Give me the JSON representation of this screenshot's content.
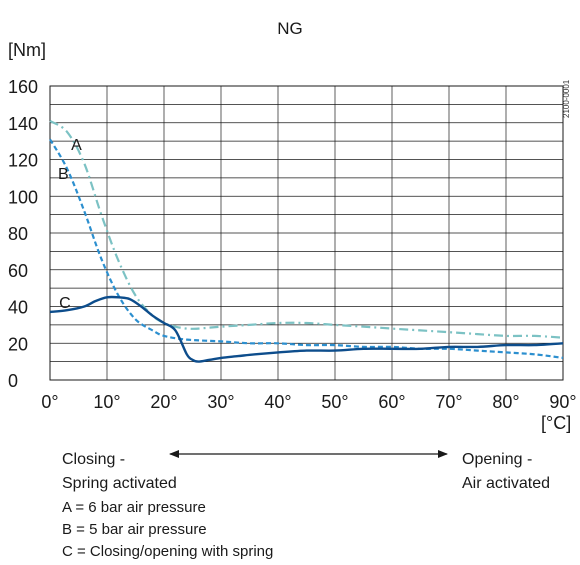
{
  "chart_data": {
    "type": "line",
    "title": "NG",
    "ylabel": "[Nm]",
    "xlabel": "[°C]",
    "xlim": [
      0,
      90
    ],
    "ylim": [
      0,
      160
    ],
    "x_ticks": [
      "0°",
      "10°",
      "20°",
      "30°",
      "40°",
      "50°",
      "60°",
      "70°",
      "80°",
      "90°"
    ],
    "y_ticks": [
      "0",
      "20",
      "40",
      "60",
      "80",
      "100",
      "120",
      "140",
      "160"
    ],
    "grid": true,
    "series": [
      {
        "name": "A",
        "color": "#7cc2c4",
        "dash": "dash-dot",
        "x": [
          0,
          3,
          6,
          9,
          12,
          15,
          18,
          20,
          22,
          24,
          26,
          30,
          35,
          40,
          45,
          50,
          55,
          60,
          65,
          70,
          75,
          80,
          85,
          90
        ],
        "y": [
          141,
          135,
          118,
          90,
          65,
          46,
          35,
          31,
          29,
          28,
          28,
          29,
          30,
          31,
          31,
          30,
          29,
          28,
          27,
          26,
          25,
          24,
          24,
          23
        ]
      },
      {
        "name": "B",
        "color": "#2c8fcf",
        "dash": "dashed",
        "x": [
          0,
          3,
          6,
          9,
          12,
          15,
          18,
          20,
          24,
          30,
          35,
          40,
          45,
          50,
          55,
          60,
          65,
          70,
          75,
          80,
          85,
          90
        ],
        "y": [
          131,
          115,
          92,
          66,
          46,
          33,
          27,
          24,
          22,
          21,
          20,
          20,
          19,
          19,
          18,
          18,
          17,
          17,
          16,
          15,
          14,
          12
        ]
      },
      {
        "name": "C",
        "color": "#0d4d8c",
        "dash": "solid",
        "x": [
          0,
          3,
          6,
          8,
          10,
          12,
          14,
          16,
          18,
          20,
          22,
          24,
          25,
          26,
          28,
          30,
          33,
          36,
          40,
          45,
          50,
          55,
          60,
          65,
          70,
          75,
          80,
          85,
          90
        ],
        "y": [
          37,
          38,
          40,
          43,
          45,
          45,
          44,
          40,
          35,
          31,
          27,
          14,
          11,
          10,
          11,
          12,
          13,
          14,
          15,
          16,
          16,
          17,
          17,
          17,
          18,
          18,
          19,
          19,
          20
        ]
      }
    ],
    "series_labels": [
      "A",
      "B",
      "C"
    ],
    "annotations": {
      "figure_code": "2100-0001",
      "left_note": [
        "Closing -",
        "Spring activated"
      ],
      "right_note": [
        "Opening -",
        "Air activated"
      ],
      "legend_lines": [
        "A = 6 bar air pressure",
        "B = 5 bar air pressure",
        "C = Closing/opening with spring"
      ]
    }
  }
}
